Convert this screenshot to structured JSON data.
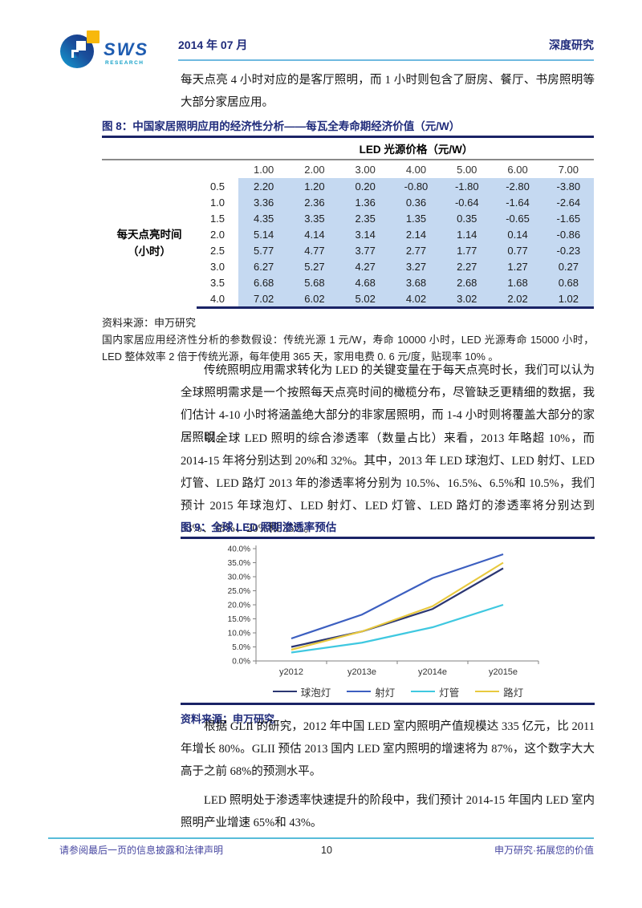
{
  "header": {
    "logo_text": "SWS",
    "logo_subtext": "RESEARCH",
    "date": "2014 年 07 月",
    "report_type": "深度研究"
  },
  "paragraphs": {
    "p1": "每天点亮 4 小时对应的是客厅照明，而 1 小时则包含了厨房、餐厅、书房照明等大部分家居应用。",
    "p2": "传统照明应用需求转化为 LED 的关键变量在于每天点亮时长，我们可以认为全球照明需求是一个按照每天点亮时间的橄榄分布，尽管缺乏更精细的数据，我们估计 4-10 小时将涵盖绝大部分的非家居照明，而 1-4 小时则将覆盖大部分的家居照明。",
    "p3": "以全球 LED 照明的综合渗透率（数量占比）来看，2013 年略超 10%，而 2014-15 年将分别达到 20%和 32%。其中，2013 年 LED 球泡灯、LED 射灯、LED 灯管、LED 路灯 2013 年的渗透率将分别为 10.5%、16.5%、6.5%和 10.5%，我们预计 2015 年球泡灯、LED 射灯、LED 灯管、LED 路灯的渗透率将分别达到 33%、38%、20%和 35%。",
    "p4": "根据 GLII 的研究，2012 年中国 LED 室内照明产值规模达 335 亿元，比 2011 年增长 80%。GLII 预估 2013 国内 LED 室内照明的增速将为 87%，这个数字大大高于之前 68%的预测水平。",
    "p5": "LED 照明处于渗透率快速提升的阶段中，我们预计 2014-15 年国内 LED 室内照明产业增速 65%和 43%。"
  },
  "figure8": {
    "title": "图 8：中国家居照明应用的经济性分析——每瓦全寿命期经济价值（元/W）",
    "col_group_header": "LED 光源价格（元/W）",
    "row_group_header_line1": "每天点亮时间",
    "row_group_header_line2": "（小时）",
    "columns": [
      "1.00",
      "2.00",
      "3.00",
      "4.00",
      "5.00",
      "6.00",
      "7.00"
    ],
    "rows": [
      {
        "label": "0.5",
        "values": [
          "2.20",
          "1.20",
          "0.20",
          "-0.80",
          "-1.80",
          "-2.80",
          "-3.80"
        ]
      },
      {
        "label": "1.0",
        "values": [
          "3.36",
          "2.36",
          "1.36",
          "0.36",
          "-0.64",
          "-1.64",
          "-2.64"
        ]
      },
      {
        "label": "1.5",
        "values": [
          "4.35",
          "3.35",
          "2.35",
          "1.35",
          "0.35",
          "-0.65",
          "-1.65"
        ]
      },
      {
        "label": "2.0",
        "values": [
          "5.14",
          "4.14",
          "3.14",
          "2.14",
          "1.14",
          "0.14",
          "-0.86"
        ]
      },
      {
        "label": "2.5",
        "values": [
          "5.77",
          "4.77",
          "3.77",
          "2.77",
          "1.77",
          "0.77",
          "-0.23"
        ]
      },
      {
        "label": "3.0",
        "values": [
          "6.27",
          "5.27",
          "4.27",
          "3.27",
          "2.27",
          "1.27",
          "0.27"
        ]
      },
      {
        "label": "3.5",
        "values": [
          "6.68",
          "5.68",
          "4.68",
          "3.68",
          "2.68",
          "1.68",
          "0.68"
        ]
      },
      {
        "label": "4.0",
        "values": [
          "7.02",
          "6.02",
          "5.02",
          "4.02",
          "3.02",
          "2.02",
          "1.02"
        ]
      }
    ],
    "source": "资料来源：申万研究",
    "note": "国内家居应用经济性分析的参数假设：传统光源 1 元/W，寿命 10000 小时，LED 光源寿命 15000 小时，LED 整体效率 2 倍于传统光源，每年使用 365 天，家用电费 0. 6 元/度，贴现率 10% 。"
  },
  "figure9": {
    "title": "图 9：全球 LED 照明渗透率预估",
    "source": "资料来源：申万研究"
  },
  "chart_data": {
    "type": "line",
    "title": "全球 LED 照明渗透率预估",
    "categories": [
      "y2012",
      "y2013e",
      "y2014e",
      "y2015e"
    ],
    "series": [
      {
        "name": "球泡灯",
        "color": "#2b3672",
        "values": [
          5.0,
          10.5,
          18.5,
          33.0
        ]
      },
      {
        "name": "射灯",
        "color": "#3c5fc0",
        "values": [
          8.0,
          16.5,
          29.5,
          38.0
        ]
      },
      {
        "name": "灯管",
        "color": "#3fc8e0",
        "values": [
          3.0,
          6.5,
          12.0,
          20.0
        ]
      },
      {
        "name": "路灯",
        "color": "#e8c93f",
        "values": [
          4.0,
          10.5,
          19.5,
          35.0
        ]
      }
    ],
    "xlabel": "",
    "ylabel": "",
    "ylim": [
      0,
      40
    ],
    "ytick_step": 5,
    "ytick_format": "percent_one_decimal",
    "grid": false,
    "legend_position": "bottom"
  },
  "footer": {
    "left": "请参阅最后一页的信息披露和法律声明",
    "page_number": "10",
    "right": "申万研究·拓展您的价值"
  },
  "colors": {
    "navy": "#1f2b7b",
    "rule_navy": "#1a2366",
    "header_rule": "#6fb9e0",
    "footer_rule": "#58bcd9",
    "table_fill": "#c5d9f1",
    "footer_text": "#4747a1",
    "logo_yellow": "#f8b80c",
    "logo_blue": "#1d5bb0",
    "logo_teal": "#12a0c8"
  }
}
